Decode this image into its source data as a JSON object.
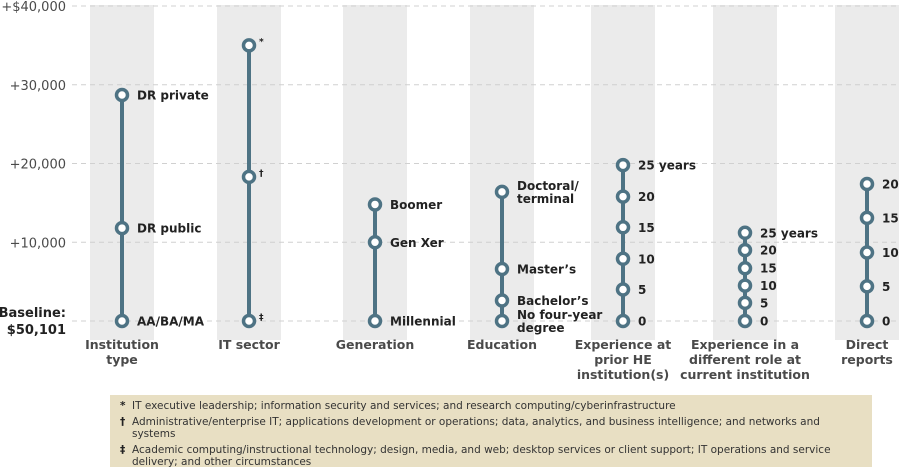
{
  "chart_data": {
    "type": "range-dot",
    "baseline_label": [
      "Baseline:",
      "$50,101"
    ],
    "yaxis": {
      "ticks": [
        0,
        10000,
        20000,
        30000,
        40000
      ],
      "tick_labels": [
        "",
        "+10,000",
        "+20,000",
        "+30,000",
        "+$40,000"
      ],
      "ylim": [
        0,
        40000
      ],
      "grid": true
    },
    "categories": [
      {
        "label": [
          "Institution",
          "type"
        ],
        "points": [
          {
            "value": 28700,
            "label": [
              "DR private"
            ],
            "mark": ""
          },
          {
            "value": 11800,
            "label": [
              "DR public"
            ],
            "mark": ""
          },
          {
            "value": 0,
            "label": [
              "AA/BA/MA"
            ],
            "mark": ""
          }
        ]
      },
      {
        "label": [
          "IT sector"
        ],
        "points": [
          {
            "value": 35000,
            "label": [
              ""
            ],
            "mark": "*"
          },
          {
            "value": 18300,
            "label": [
              ""
            ],
            "mark": "†"
          },
          {
            "value": 0,
            "label": [
              ""
            ],
            "mark": "‡"
          }
        ]
      },
      {
        "label": [
          "Generation"
        ],
        "points": [
          {
            "value": 14800,
            "label": [
              "Boomer"
            ],
            "mark": ""
          },
          {
            "value": 10000,
            "label": [
              "Gen Xer"
            ],
            "mark": ""
          },
          {
            "value": 0,
            "label": [
              "Millennial"
            ],
            "mark": ""
          }
        ]
      },
      {
        "label": [
          "Education"
        ],
        "points": [
          {
            "value": 16400,
            "label": [
              "Doctoral/",
              "terminal"
            ],
            "mark": ""
          },
          {
            "value": 6600,
            "label": [
              "Master’s"
            ],
            "mark": ""
          },
          {
            "value": 2600,
            "label": [
              "Bachelor’s"
            ],
            "mark": ""
          },
          {
            "value": 0,
            "label": [
              "No four-year",
              "degree"
            ],
            "mark": ""
          }
        ]
      },
      {
        "label": [
          "Experience at",
          "prior HE",
          "institution(s)"
        ],
        "points": [
          {
            "value": 19800,
            "label": [
              "25 years"
            ],
            "mark": ""
          },
          {
            "value": 15800,
            "label": [
              "20"
            ],
            "mark": ""
          },
          {
            "value": 11900,
            "label": [
              "15"
            ],
            "mark": ""
          },
          {
            "value": 7900,
            "label": [
              "10"
            ],
            "mark": ""
          },
          {
            "value": 4000,
            "label": [
              "5"
            ],
            "mark": ""
          },
          {
            "value": 0,
            "label": [
              "0"
            ],
            "mark": ""
          }
        ]
      },
      {
        "label": [
          "Experience in a",
          "different role at",
          "current institution"
        ],
        "points": [
          {
            "value": 11200,
            "label": [
              "25 years"
            ],
            "mark": ""
          },
          {
            "value": 9000,
            "label": [
              "20"
            ],
            "mark": ""
          },
          {
            "value": 6700,
            "label": [
              "15"
            ],
            "mark": ""
          },
          {
            "value": 4500,
            "label": [
              "10"
            ],
            "mark": ""
          },
          {
            "value": 2300,
            "label": [
              "5"
            ],
            "mark": ""
          },
          {
            "value": 0,
            "label": [
              "0"
            ],
            "mark": ""
          }
        ]
      },
      {
        "label": [
          "Direct",
          "reports"
        ],
        "points": [
          {
            "value": 17400,
            "label": [
              "20"
            ],
            "mark": ""
          },
          {
            "value": 13100,
            "label": [
              "15"
            ],
            "mark": ""
          },
          {
            "value": 8700,
            "label": [
              "10"
            ],
            "mark": ""
          },
          {
            "value": 4400,
            "label": [
              "5"
            ],
            "mark": ""
          },
          {
            "value": 0,
            "label": [
              "0"
            ],
            "mark": ""
          }
        ]
      }
    ],
    "colors": {
      "line": "#4e7384",
      "dot_fill": "#ffffff",
      "dot_stroke": "#4e7384",
      "band": "#ebebeb",
      "grid": "#d0d0d0",
      "note_bg": "#e8dfc3"
    }
  },
  "footnotes": [
    {
      "symbol": "*",
      "text": "IT executive leadership; information security and services; and research computing/cyberinfrastructure"
    },
    {
      "symbol": "†",
      "text": "Administrative/enterprise IT; applications development or operations; data, analytics, and business intelligence; and networks and systems"
    },
    {
      "symbol": "‡",
      "text": "Academic computing/instructional technology; design, media, and web; desktop services or client support; IT operations and service delivery; and other circumstances"
    }
  ]
}
